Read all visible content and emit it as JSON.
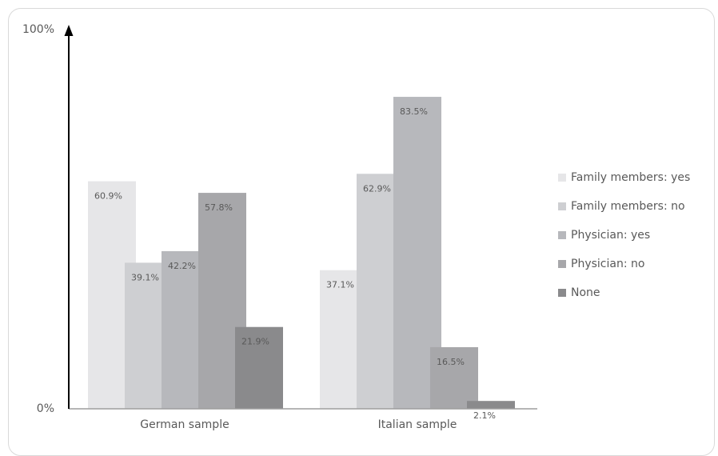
{
  "chart_data": {
    "type": "bar",
    "categories": [
      "German sample",
      "Italian sample"
    ],
    "series": [
      {
        "name": "Family members: yes",
        "values": [
          60.9,
          37.1
        ],
        "color": "#e6e6e8"
      },
      {
        "name": "Family members: no",
        "values": [
          39.1,
          62.9
        ],
        "color": "#cecfd2"
      },
      {
        "name": "Physician: yes",
        "values": [
          42.2,
          83.5
        ],
        "color": "#b7b8bc"
      },
      {
        "name": "Physician: no",
        "values": [
          57.8,
          16.5
        ],
        "color": "#a7a7aa"
      },
      {
        "name": "None",
        "values": [
          21.9,
          2.1
        ],
        "color": "#8a8a8c"
      }
    ],
    "value_labels": [
      [
        "60.9%",
        "39.1%",
        "42.2%",
        "57.8%",
        "21.9%"
      ],
      [
        "37.1%",
        "62.9%",
        "83.5%",
        "16.5%",
        "2.1%"
      ]
    ],
    "y_ticks": [
      "0%",
      "100%"
    ],
    "ylim": [
      0,
      100
    ],
    "legend_position": "right"
  }
}
